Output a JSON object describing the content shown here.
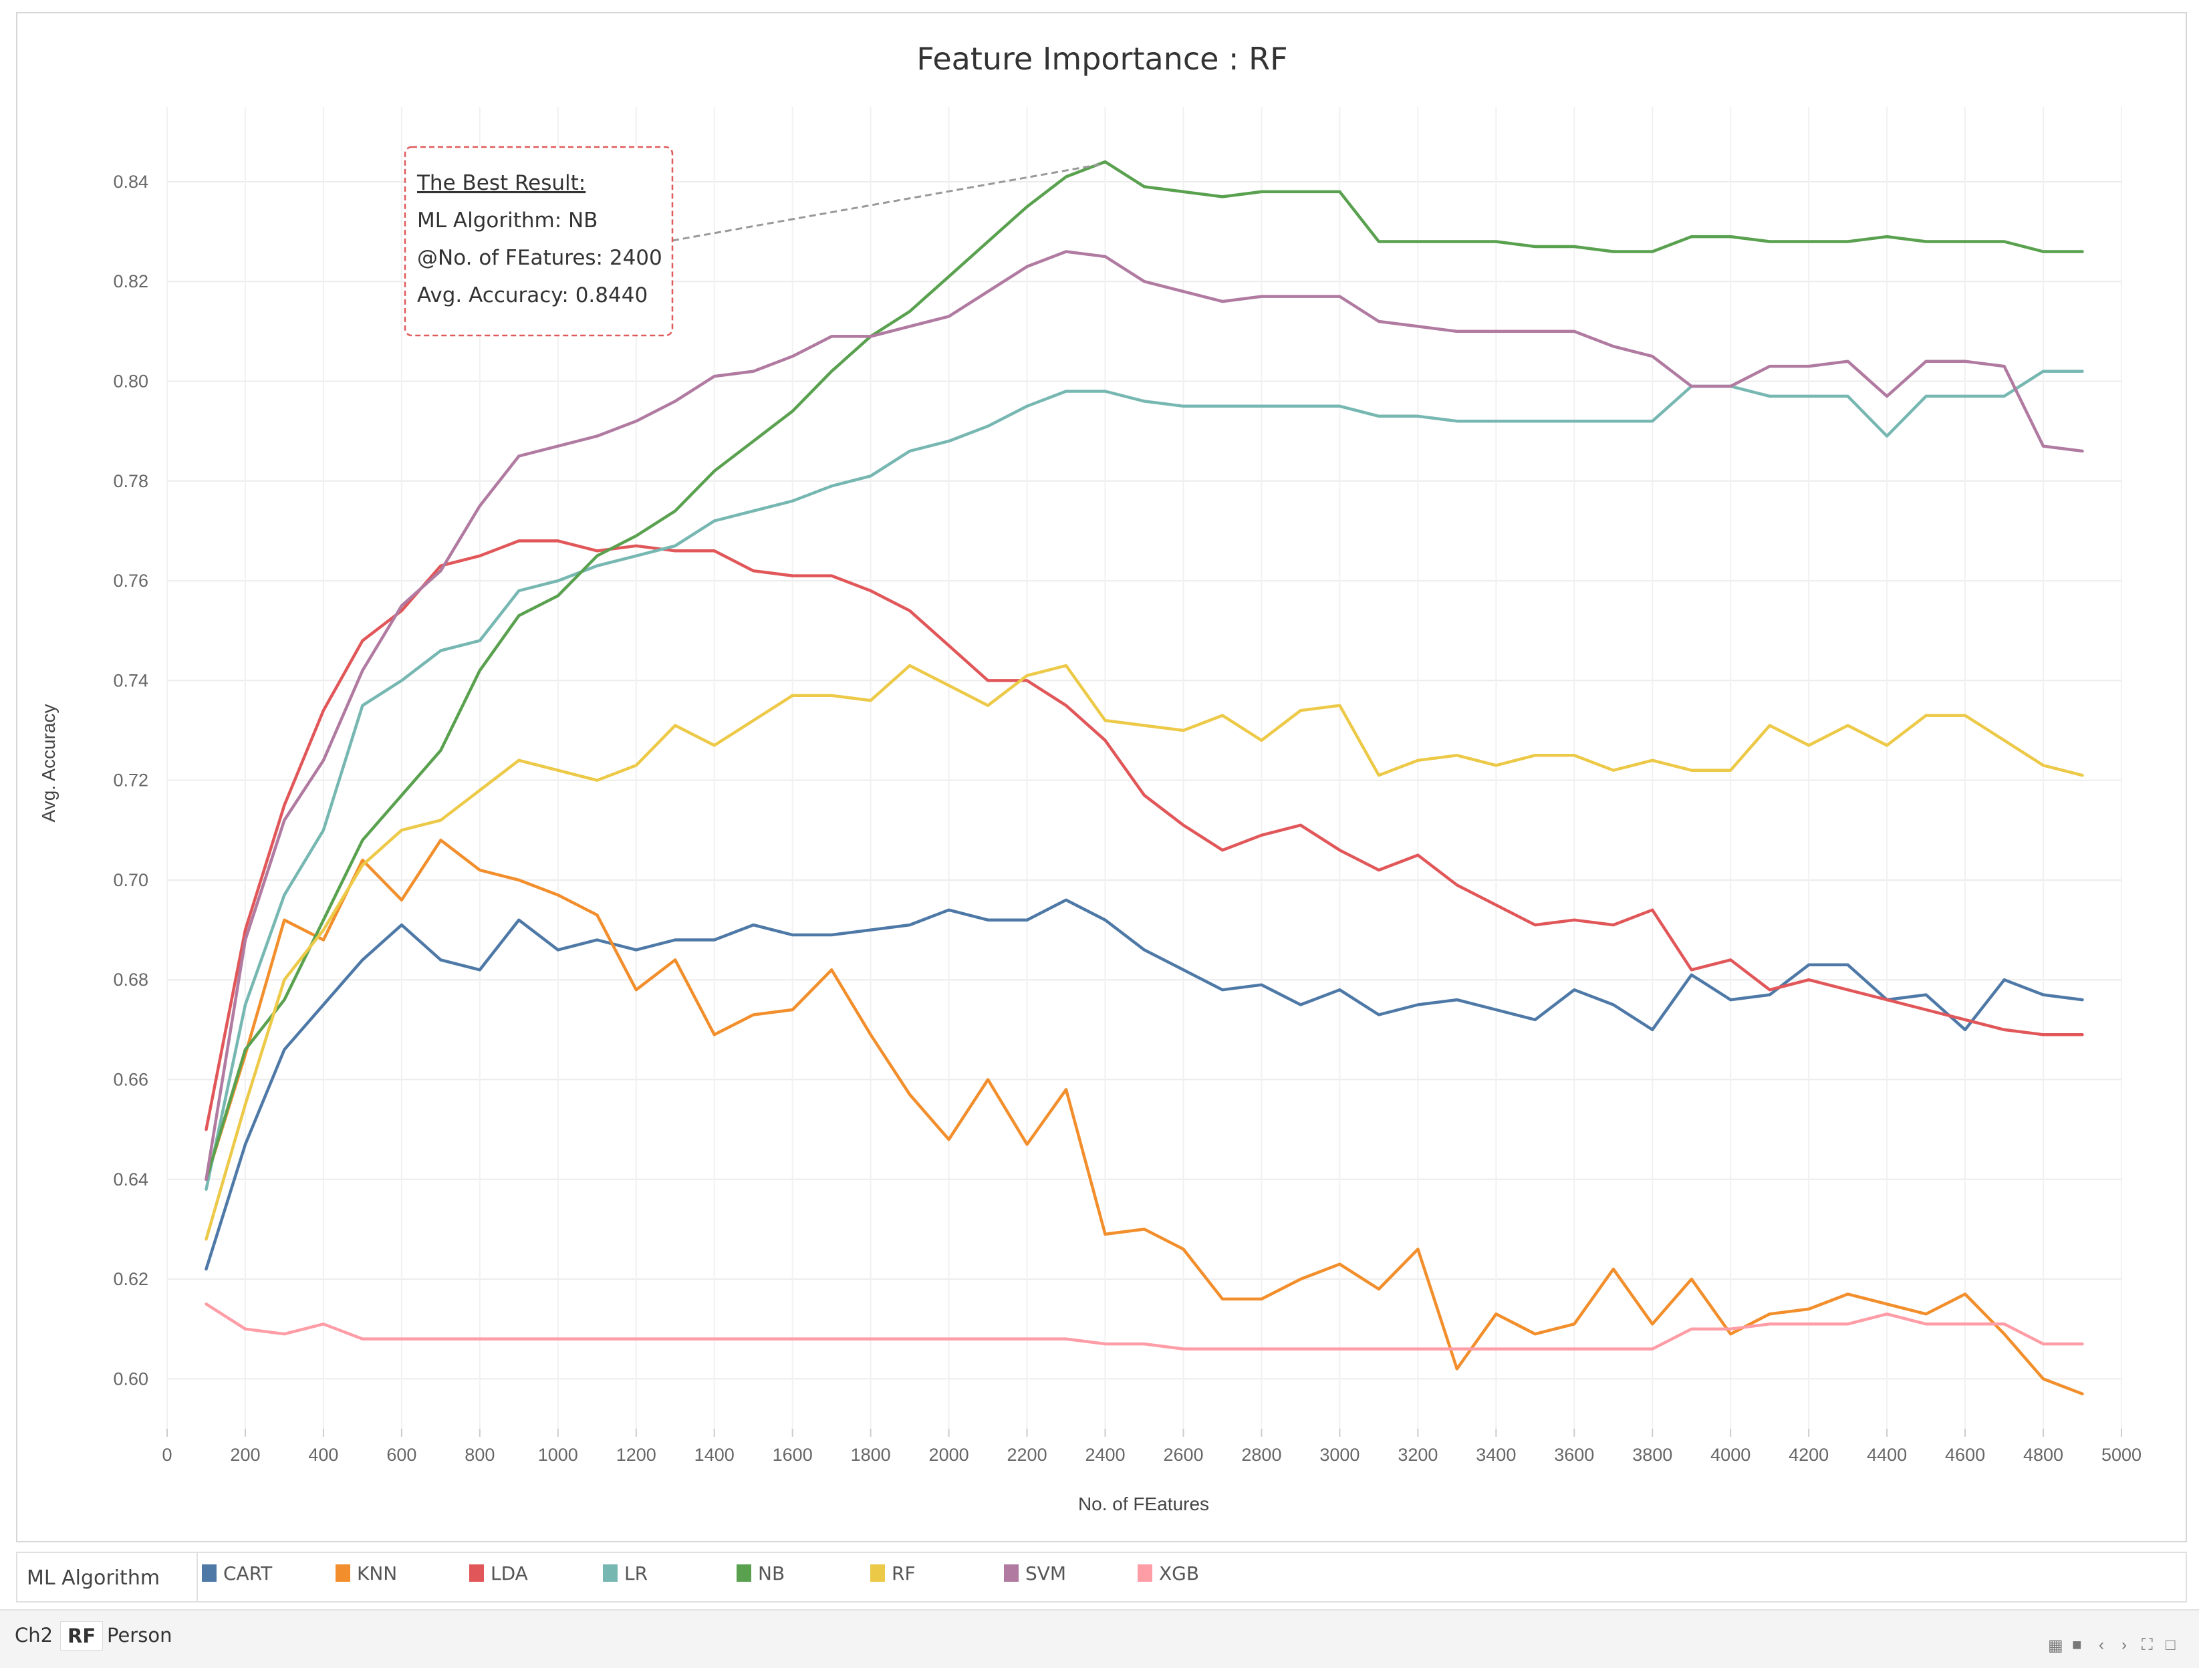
{
  "chart_data": {
    "type": "line",
    "title": "Feature Importance : RF",
    "xlabel": "No. of FEatures",
    "ylabel": "Avg. Accuracy",
    "xlim": [
      0,
      5000
    ],
    "ylim": [
      0.59,
      0.855
    ],
    "x_ticks": [
      0,
      200,
      400,
      600,
      800,
      1000,
      1200,
      1400,
      1600,
      1800,
      2000,
      2200,
      2400,
      2600,
      2800,
      3000,
      3200,
      3400,
      3600,
      3800,
      4000,
      4200,
      4400,
      4600,
      4800,
      5000
    ],
    "y_ticks": [
      0.6,
      0.62,
      0.64,
      0.66,
      0.68,
      0.7,
      0.72,
      0.74,
      0.76,
      0.78,
      0.8,
      0.82,
      0.84
    ],
    "grid": true,
    "x": [
      100,
      200,
      300,
      400,
      500,
      600,
      700,
      800,
      900,
      1000,
      1100,
      1200,
      1300,
      1400,
      1500,
      1600,
      1700,
      1800,
      1900,
      2000,
      2100,
      2200,
      2300,
      2400,
      2500,
      2600,
      2700,
      2800,
      2900,
      3000,
      3100,
      3200,
      3300,
      3400,
      3500,
      3600,
      3700,
      3800,
      3900,
      4000,
      4100,
      4200,
      4300,
      4400,
      4500,
      4600,
      4700,
      4800,
      4900
    ],
    "series": [
      {
        "name": "CART",
        "color": "#4e79a7",
        "values": [
          0.622,
          0.647,
          0.666,
          0.675,
          0.684,
          0.691,
          0.684,
          0.682,
          0.692,
          0.686,
          0.688,
          0.686,
          0.688,
          0.688,
          0.691,
          0.689,
          0.689,
          0.69,
          0.691,
          0.694,
          0.692,
          0.692,
          0.696,
          0.692,
          0.686,
          0.682,
          0.678,
          0.679,
          0.675,
          0.678,
          0.673,
          0.675,
          0.676,
          0.674,
          0.672,
          0.678,
          0.675,
          0.67,
          0.681,
          0.676,
          0.677,
          0.683,
          0.683,
          0.676,
          0.677,
          0.67,
          0.68,
          0.677,
          0.676
        ]
      },
      {
        "name": "KNN",
        "color": "#f28e2b",
        "values": [
          0.64,
          0.665,
          0.692,
          0.688,
          0.704,
          0.696,
          0.708,
          0.702,
          0.7,
          0.697,
          0.693,
          0.678,
          0.684,
          0.669,
          0.673,
          0.674,
          0.682,
          0.669,
          0.657,
          0.648,
          0.66,
          0.647,
          0.658,
          0.629,
          0.63,
          0.626,
          0.616,
          0.616,
          0.62,
          0.623,
          0.618,
          0.626,
          0.602,
          0.613,
          0.609,
          0.611,
          0.622,
          0.611,
          0.62,
          0.609,
          0.613,
          0.614,
          0.617,
          0.615,
          0.613,
          0.617,
          0.609,
          0.6,
          0.597
        ]
      },
      {
        "name": "LDA",
        "color": "#e15759",
        "values": [
          0.65,
          0.69,
          0.715,
          0.734,
          0.748,
          0.754,
          0.763,
          0.765,
          0.768,
          0.768,
          0.766,
          0.767,
          0.766,
          0.766,
          0.762,
          0.761,
          0.761,
          0.758,
          0.754,
          0.747,
          0.74,
          0.74,
          0.735,
          0.728,
          0.717,
          0.711,
          0.706,
          0.709,
          0.711,
          0.706,
          0.702,
          0.705,
          0.699,
          0.695,
          0.691,
          0.692,
          0.691,
          0.694,
          0.682,
          0.684,
          0.678,
          0.68,
          0.678,
          0.676,
          0.674,
          0.672,
          0.67,
          0.669,
          0.669
        ]
      },
      {
        "name": "LR",
        "color": "#76b7b2",
        "values": [
          0.638,
          0.675,
          0.697,
          0.71,
          0.735,
          0.74,
          0.746,
          0.748,
          0.758,
          0.76,
          0.763,
          0.765,
          0.767,
          0.772,
          0.774,
          0.776,
          0.779,
          0.781,
          0.786,
          0.788,
          0.791,
          0.795,
          0.798,
          0.798,
          0.796,
          0.795,
          0.795,
          0.795,
          0.795,
          0.795,
          0.793,
          0.793,
          0.792,
          0.792,
          0.792,
          0.792,
          0.792,
          0.792,
          0.799,
          0.799,
          0.797,
          0.797,
          0.797,
          0.789,
          0.797,
          0.797,
          0.797,
          0.802,
          0.802
        ]
      },
      {
        "name": "NB",
        "color": "#59a14f",
        "values": [
          0.64,
          0.666,
          0.676,
          0.692,
          0.708,
          0.717,
          0.726,
          0.742,
          0.753,
          0.757,
          0.765,
          0.769,
          0.774,
          0.782,
          0.788,
          0.794,
          0.802,
          0.809,
          0.814,
          0.821,
          0.828,
          0.835,
          0.841,
          0.844,
          0.839,
          0.838,
          0.837,
          0.838,
          0.838,
          0.838,
          0.828,
          0.828,
          0.828,
          0.828,
          0.827,
          0.827,
          0.826,
          0.826,
          0.829,
          0.829,
          0.828,
          0.828,
          0.828,
          0.829,
          0.828,
          0.828,
          0.828,
          0.826,
          0.826
        ]
      },
      {
        "name": "RF",
        "color": "#edc948",
        "values": [
          0.628,
          0.655,
          0.68,
          0.69,
          0.703,
          0.71,
          0.712,
          0.718,
          0.724,
          0.722,
          0.72,
          0.723,
          0.731,
          0.727,
          0.732,
          0.737,
          0.737,
          0.736,
          0.743,
          0.739,
          0.735,
          0.741,
          0.743,
          0.732,
          0.731,
          0.73,
          0.733,
          0.728,
          0.734,
          0.735,
          0.721,
          0.724,
          0.725,
          0.723,
          0.725,
          0.725,
          0.722,
          0.724,
          0.722,
          0.722,
          0.731,
          0.727,
          0.731,
          0.727,
          0.733,
          0.733,
          0.728,
          0.723,
          0.721
        ]
      },
      {
        "name": "SVM",
        "color": "#b07aa1",
        "values": [
          0.64,
          0.688,
          0.712,
          0.724,
          0.742,
          0.755,
          0.762,
          0.775,
          0.785,
          0.787,
          0.789,
          0.792,
          0.796,
          0.801,
          0.802,
          0.805,
          0.809,
          0.809,
          0.811,
          0.813,
          0.818,
          0.823,
          0.826,
          0.825,
          0.82,
          0.818,
          0.816,
          0.817,
          0.817,
          0.817,
          0.812,
          0.811,
          0.81,
          0.81,
          0.81,
          0.81,
          0.807,
          0.805,
          0.799,
          0.799,
          0.803,
          0.803,
          0.804,
          0.797,
          0.804,
          0.804,
          0.803,
          0.787,
          0.786
        ]
      },
      {
        "name": "XGB",
        "color": "#ff9da7",
        "values": [
          0.615,
          0.61,
          0.609,
          0.611,
          0.608,
          0.608,
          0.608,
          0.608,
          0.608,
          0.608,
          0.608,
          0.608,
          0.608,
          0.608,
          0.608,
          0.608,
          0.608,
          0.608,
          0.608,
          0.608,
          0.608,
          0.608,
          0.608,
          0.607,
          0.607,
          0.606,
          0.606,
          0.606,
          0.606,
          0.606,
          0.606,
          0.606,
          0.606,
          0.606,
          0.606,
          0.606,
          0.606,
          0.606,
          0.61,
          0.61,
          0.611,
          0.611,
          0.611,
          0.613,
          0.611,
          0.611,
          0.611,
          0.607,
          0.607
        ]
      }
    ],
    "annotation": {
      "heading": "The Best Result:",
      "line1": "ML Algorithm: NB",
      "line2": "@No. of FEatures: 2400",
      "line3": "Avg. Accuracy: 0.8440",
      "target_x": 2400,
      "target_y": 0.844
    }
  },
  "legend": {
    "title": "ML Algorithm",
    "items": [
      {
        "label": "CART",
        "color": "#4e79a7"
      },
      {
        "label": "KNN",
        "color": "#f28e2b"
      },
      {
        "label": "LDA",
        "color": "#e15759"
      },
      {
        "label": "LR",
        "color": "#76b7b2"
      },
      {
        "label": "NB",
        "color": "#59a14f"
      },
      {
        "label": "RF",
        "color": "#edc948"
      },
      {
        "label": "SVM",
        "color": "#b07aa1"
      },
      {
        "label": "XGB",
        "color": "#ff9da7"
      }
    ]
  },
  "tabs": [
    {
      "label": "Ch2",
      "active": false
    },
    {
      "label": "RF",
      "active": true
    },
    {
      "label": "Person",
      "active": false
    }
  ],
  "toolbar": {
    "icons": [
      "grid-icon",
      "square-icon",
      "prev-icon",
      "next-icon",
      "fullscreen-icon",
      "comment-icon"
    ]
  }
}
